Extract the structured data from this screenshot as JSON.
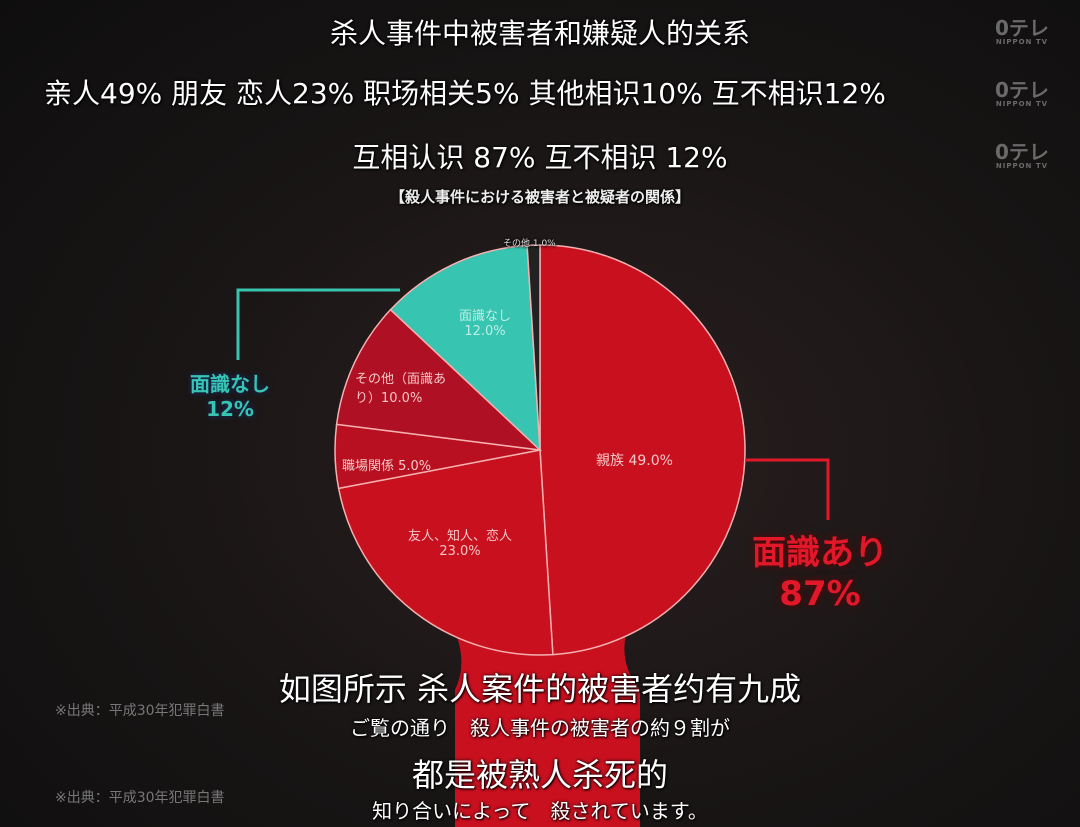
{
  "subtitles_top": {
    "line1": "杀人事件中被害者和嫌疑人的关系",
    "line2": "亲人49% 朋友 恋人23% 职场相关5% 其他相识10%  互不相识12%",
    "line3": "互相认识 87% 互不相识 12%"
  },
  "logo": {
    "text": "0テレ",
    "sub": "NIPPON TV"
  },
  "chart_data": {
    "type": "pie",
    "title": "【殺人事件における被害者と被疑者の関係】",
    "start": "top",
    "direction": "clockwise",
    "slices": [
      {
        "label": "親族 49.0%",
        "value": 49.0,
        "color": "#c8101f"
      },
      {
        "label": "友人、知人、恋人23.0%",
        "value": 23.0,
        "color": "#c8101f"
      },
      {
        "label": "職場関係 5.0%",
        "value": 5.0,
        "color": "#b81020"
      },
      {
        "label": "その他（面識あり）10.0%",
        "value": 10.0,
        "color": "#b01023"
      },
      {
        "label": "面識なし 12.0%",
        "value": 12.0,
        "color": "#37c4b0"
      },
      {
        "label": "その他 1.0%",
        "value": 1.0,
        "color": "#222222"
      }
    ],
    "groups": [
      {
        "label": "面識なし",
        "value": "12%",
        "color": "#37c4b0"
      },
      {
        "label": "面識あり",
        "value": "87%",
        "color": "#e0182a"
      }
    ],
    "source": "※出典：平成30年犯罪白書"
  },
  "subtitles_bottom": {
    "cn1": "如图所示 杀人案件的被害者约有九成",
    "jp1": "ご覧の通り　殺人事件の被害者の約９割が",
    "cn2": "都是被熟人杀死的",
    "jp2": "知り合いによって　殺されています。"
  }
}
